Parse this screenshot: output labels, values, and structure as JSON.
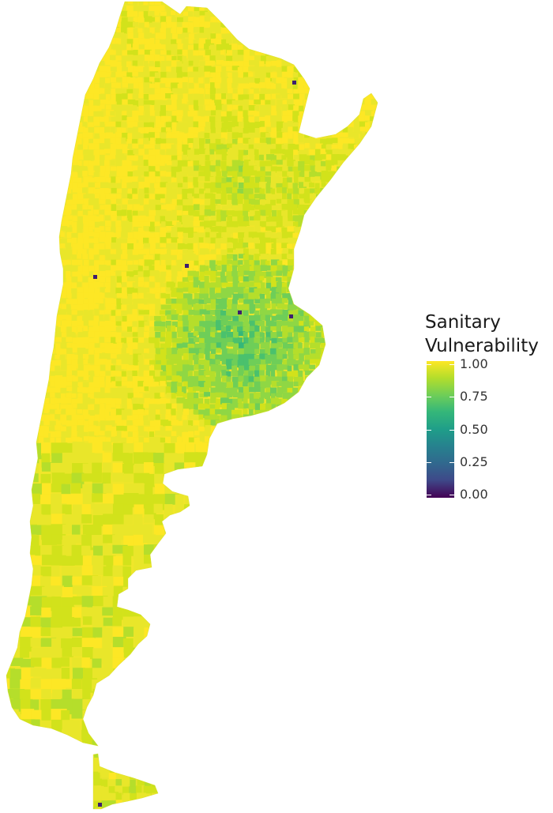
{
  "legend": {
    "title_line1": "Sanitary",
    "title_line2": "Vulnerability",
    "ticks": [
      "1.00",
      "0.75",
      "0.50",
      "0.25",
      "0.00"
    ],
    "gradient_stops": [
      "#fde725",
      "#b5de2b",
      "#6ece58",
      "#35b779",
      "#1f9e89",
      "#26828e",
      "#31688e",
      "#3e4989",
      "#440154"
    ]
  },
  "map": {
    "region": "Argentina",
    "fill_palette": [
      "#fde725",
      "#e9e62a",
      "#d2e21b",
      "#b5de2b",
      "#8fd744",
      "#6ece58",
      "#4ac16d",
      "#35b779",
      "#1f9e89",
      "#26828e",
      "#31688e",
      "#3e4989",
      "#440154"
    ]
  }
}
